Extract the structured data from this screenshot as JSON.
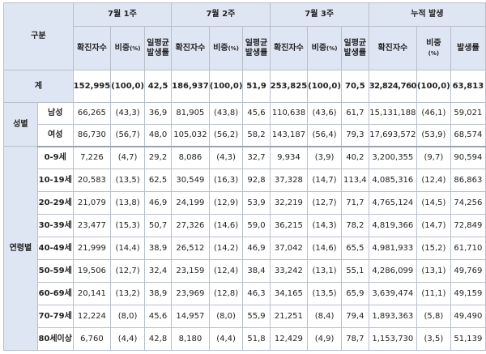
{
  "header": {
    "category": "구분",
    "weeks": [
      "7월 1주",
      "7월 2주",
      "7월 3주",
      "누적 발생"
    ],
    "sub_confirmed": "확진자수",
    "sub_ratio": "비중",
    "sub_ratio_unit": "(%)",
    "sub_daily_rate": "일평균 발생률",
    "sub_rate": "발생률"
  },
  "total": {
    "label": "계",
    "values": [
      "152,995",
      "(100,0)",
      "42,5",
      "186,937",
      "(100,0)",
      "51,9",
      "253,825",
      "(100,0)",
      "70,5",
      "32,824,760",
      "(100,0)",
      "63,813"
    ]
  },
  "groups": [
    {
      "label": "성별",
      "rows": [
        {
          "label": "남성",
          "values": [
            "66,265",
            "(43,3)",
            "36,9",
            "81,905",
            "(43,8)",
            "45,6",
            "110,638",
            "(43,6)",
            "61,7",
            "15,131,188",
            "(46,1)",
            "59,021"
          ]
        },
        {
          "label": "여성",
          "values": [
            "86,730",
            "(56,7)",
            "48,0",
            "105,032",
            "(56,2)",
            "58,2",
            "143,187",
            "(56,4)",
            "79,3",
            "17,693,572",
            "(53,9)",
            "68,574"
          ]
        }
      ]
    },
    {
      "label": "연령별",
      "rows": [
        {
          "label": "0-9세",
          "values": [
            "7,226",
            "(4,7)",
            "29,2",
            "8,086",
            "(4,3)",
            "32,7",
            "9,934",
            "(3,9)",
            "40,2",
            "3,200,355",
            "(9,7)",
            "90,594"
          ]
        },
        {
          "label": "10-19세",
          "values": [
            "20,583",
            "(13,5)",
            "62,5",
            "30,549",
            "(16,3)",
            "92,8",
            "37,328",
            "(14,7)",
            "113,4",
            "4,085,316",
            "(12,4)",
            "86,863"
          ]
        },
        {
          "label": "20-29세",
          "values": [
            "21,079",
            "(13,8)",
            "46,9",
            "24,199",
            "(12,9)",
            "53,9",
            "32,219",
            "(12,7)",
            "71,7",
            "4,765,124",
            "(14,5)",
            "74,256"
          ]
        },
        {
          "label": "30-39세",
          "values": [
            "23,477",
            "(15,3)",
            "50,7",
            "27,326",
            "(14,6)",
            "59,0",
            "36,215",
            "(14,3)",
            "78,2",
            "4,819,366",
            "(14,7)",
            "72,849"
          ]
        },
        {
          "label": "40-49세",
          "values": [
            "21,999",
            "(14,4)",
            "38,9",
            "26,512",
            "(14,2)",
            "46,9",
            "37,042",
            "(14,6)",
            "65,5",
            "4,981,933",
            "(15,2)",
            "61,710"
          ]
        },
        {
          "label": "50-59세",
          "values": [
            "19,506",
            "(12,7)",
            "32,4",
            "23,159",
            "(12,4)",
            "38,4",
            "33,242",
            "(13,1)",
            "55,1",
            "4,286,099",
            "(13,1)",
            "49,769"
          ]
        },
        {
          "label": "60-69세",
          "values": [
            "20,141",
            "(13,2)",
            "38,9",
            "23,969",
            "(12,8)",
            "46,3",
            "34,165",
            "(13,5)",
            "65,9",
            "3,639,474",
            "(11,1)",
            "49,159"
          ]
        },
        {
          "label": "70-79세",
          "values": [
            "12,224",
            "(8,0)",
            "45,6",
            "14,957",
            "(8,0)",
            "55,9",
            "21,251",
            "(8,4)",
            "79,4",
            "1,893,363",
            "(5,8)",
            "49,490"
          ]
        },
        {
          "label": "80세이상",
          "values": [
            "6,760",
            "(4,4)",
            "42,8",
            "8,180",
            "(4,4)",
            "51,8",
            "12,429",
            "(4,9)",
            "78,7",
            "1,153,730",
            "(3,5)",
            "51,139"
          ]
        }
      ]
    }
  ]
}
